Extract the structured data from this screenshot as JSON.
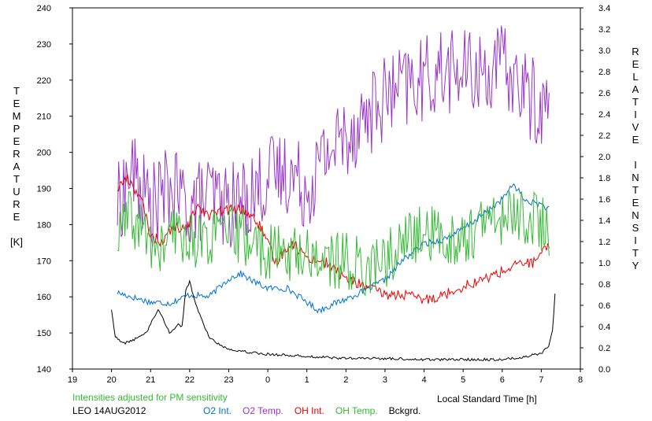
{
  "chart_data": {
    "type": "line",
    "left_axis_label": "TEMPERATURE",
    "left_axis_unit": "[K]",
    "right_axis_label": [
      "RELATIVE",
      "INTENSITY"
    ],
    "xlabel": "Local Standard Time [h]",
    "note": "Intensities adjusted for PM sensitivity",
    "station": "LEO 14AUG2012",
    "x_ticks": [
      "19",
      "20",
      "21",
      "22",
      "23",
      "0",
      "1",
      "2",
      "3",
      "4",
      "5",
      "6",
      "7",
      "8"
    ],
    "left_ticks": [
      "140",
      "150",
      "160",
      "170",
      "180",
      "190",
      "200",
      "210",
      "220",
      "230",
      "240"
    ],
    "right_ticks": [
      "0.0",
      "0.2",
      "0.4",
      "0.6",
      "0.8",
      "1.0",
      "1.2",
      "1.4",
      "1.6",
      "1.8",
      "2.0",
      "2.2",
      "2.4",
      "2.6",
      "2.8",
      "3.0",
      "3.2",
      "3.4"
    ],
    "x_range": [
      19,
      32
    ],
    "left_range": [
      140,
      240
    ],
    "right_range": [
      0,
      3.4
    ],
    "series": [
      {
        "name": "O2 Int.",
        "color": "#0070d0",
        "axis": "right",
        "noise": 0.03,
        "points": [
          [
            20.15,
            0.72
          ],
          [
            20.5,
            0.68
          ],
          [
            21,
            0.63
          ],
          [
            21.5,
            0.62
          ],
          [
            22,
            0.7
          ],
          [
            22.5,
            0.68
          ],
          [
            23,
            0.85
          ],
          [
            23.3,
            0.9
          ],
          [
            23.6,
            0.83
          ],
          [
            24,
            0.76
          ],
          [
            24.5,
            0.76
          ],
          [
            25,
            0.63
          ],
          [
            25.3,
            0.55
          ],
          [
            25.6,
            0.6
          ],
          [
            26,
            0.66
          ],
          [
            26.5,
            0.74
          ],
          [
            27,
            0.84
          ],
          [
            27.5,
            1.04
          ],
          [
            28,
            1.18
          ],
          [
            28.5,
            1.22
          ],
          [
            29,
            1.32
          ],
          [
            29.5,
            1.45
          ],
          [
            30,
            1.6
          ],
          [
            30.3,
            1.74
          ],
          [
            30.6,
            1.58
          ],
          [
            31,
            1.55
          ],
          [
            31.2,
            1.5
          ]
        ]
      },
      {
        "name": "O2 Temp.",
        "color": "#9933cc",
        "axis": "left",
        "noise": 12,
        "points": [
          [
            20.15,
            185
          ],
          [
            20.5,
            195
          ],
          [
            21,
            185
          ],
          [
            21.5,
            190
          ],
          [
            22,
            185
          ],
          [
            22.5,
            188
          ],
          [
            23,
            185
          ],
          [
            23.5,
            188
          ],
          [
            24,
            193
          ],
          [
            24.5,
            195
          ],
          [
            25,
            190
          ],
          [
            25.5,
            200
          ],
          [
            26,
            205
          ],
          [
            26.5,
            210
          ],
          [
            27,
            215
          ],
          [
            27.5,
            218
          ],
          [
            28,
            220
          ],
          [
            28.5,
            223
          ],
          [
            29,
            222
          ],
          [
            29.5,
            222
          ],
          [
            30,
            224
          ],
          [
            30.5,
            218
          ],
          [
            31,
            212
          ],
          [
            31.2,
            212
          ]
        ]
      },
      {
        "name": "OH Int.",
        "color": "#ee0000",
        "axis": "right",
        "noise": 0.05,
        "points": [
          [
            20.15,
            1.7
          ],
          [
            20.4,
            1.8
          ],
          [
            20.6,
            1.7
          ],
          [
            20.8,
            1.55
          ],
          [
            21,
            1.25
          ],
          [
            21.3,
            1.2
          ],
          [
            21.6,
            1.35
          ],
          [
            21.9,
            1.3
          ],
          [
            22.2,
            1.55
          ],
          [
            22.5,
            1.45
          ],
          [
            23,
            1.5
          ],
          [
            23.4,
            1.5
          ],
          [
            23.8,
            1.35
          ],
          [
            24.2,
            1.0
          ],
          [
            24.6,
            1.2
          ],
          [
            25,
            1.05
          ],
          [
            25.5,
            1.0
          ],
          [
            26,
            0.85
          ],
          [
            26.5,
            0.78
          ],
          [
            27,
            0.7
          ],
          [
            27.5,
            0.7
          ],
          [
            28,
            0.65
          ],
          [
            28.5,
            0.7
          ],
          [
            29,
            0.78
          ],
          [
            29.5,
            0.84
          ],
          [
            30,
            0.92
          ],
          [
            30.5,
            1.0
          ],
          [
            30.8,
            1.0
          ],
          [
            31.1,
            1.12
          ],
          [
            31.2,
            1.15
          ]
        ]
      },
      {
        "name": "OH Temp.",
        "color": "#33bb33",
        "axis": "left",
        "noise": 8,
        "points": [
          [
            20.15,
            175
          ],
          [
            20.4,
            182
          ],
          [
            20.8,
            178
          ],
          [
            21.2,
            172
          ],
          [
            21.6,
            178
          ],
          [
            22,
            176
          ],
          [
            22.5,
            176
          ],
          [
            23,
            178
          ],
          [
            23.5,
            176
          ],
          [
            24,
            172
          ],
          [
            24.5,
            172
          ],
          [
            25,
            172
          ],
          [
            25.5,
            170
          ],
          [
            26,
            170
          ],
          [
            26.5,
            168
          ],
          [
            27,
            170
          ],
          [
            27.5,
            175
          ],
          [
            28,
            178
          ],
          [
            28.5,
            176
          ],
          [
            29,
            176
          ],
          [
            29.5,
            180
          ],
          [
            30,
            182
          ],
          [
            30.5,
            183
          ],
          [
            31,
            180
          ],
          [
            31.2,
            178
          ]
        ]
      },
      {
        "name": "Bckgrd.",
        "color": "#000000",
        "axis": "right",
        "noise": 0.012,
        "points": [
          [
            20,
            0.56
          ],
          [
            20.1,
            0.3
          ],
          [
            20.3,
            0.24
          ],
          [
            20.6,
            0.28
          ],
          [
            20.9,
            0.35
          ],
          [
            21.2,
            0.57
          ],
          [
            21.5,
            0.33
          ],
          [
            21.7,
            0.43
          ],
          [
            21.8,
            0.38
          ],
          [
            21.9,
            0.75
          ],
          [
            22,
            0.82
          ],
          [
            22.2,
            0.56
          ],
          [
            22.5,
            0.3
          ],
          [
            22.8,
            0.22
          ],
          [
            23,
            0.19
          ],
          [
            23.5,
            0.16
          ],
          [
            24,
            0.14
          ],
          [
            25,
            0.12
          ],
          [
            26,
            0.1
          ],
          [
            27,
            0.1
          ],
          [
            28,
            0.09
          ],
          [
            29,
            0.09
          ],
          [
            30,
            0.09
          ],
          [
            30.5,
            0.11
          ],
          [
            31,
            0.15
          ],
          [
            31.2,
            0.22
          ],
          [
            31.3,
            0.4
          ],
          [
            31.35,
            0.72
          ]
        ]
      }
    ]
  }
}
